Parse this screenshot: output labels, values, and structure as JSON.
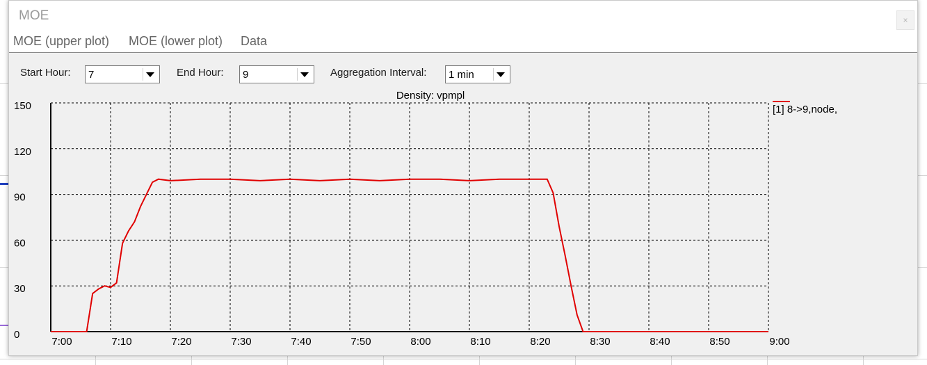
{
  "window": {
    "title": "MOE",
    "close_glyph": "×"
  },
  "menu": {
    "items": [
      {
        "label": "MOE (upper plot)"
      },
      {
        "label": "MOE (lower plot)"
      },
      {
        "label": "Data"
      }
    ]
  },
  "controls": {
    "start_hour_label": "Start Hour:",
    "start_hour_value": "7",
    "end_hour_label": "End Hour:",
    "end_hour_value": "9",
    "aggregation_label": "Aggregation Interval:",
    "aggregation_value": "1 min"
  },
  "chart_data": {
    "type": "line",
    "title": "Density: vpmpl",
    "xlabel": "",
    "ylabel": "",
    "x_tick_labels": [
      "7:00",
      "7:10",
      "7:20",
      "7:30",
      "7:40",
      "7:50",
      "8:00",
      "8:10",
      "8:20",
      "8:30",
      "8:40",
      "8:50",
      "9:00"
    ],
    "y_tick_labels": [
      "0",
      "30",
      "60",
      "90",
      "120",
      "150"
    ],
    "xlim_minutes": [
      0,
      120
    ],
    "ylim": [
      0,
      150
    ],
    "grid": true,
    "legend_position": "top-right",
    "series": [
      {
        "name": "[1] 8->9,node,",
        "color": "#e00000",
        "x": [
          "7:00",
          "7:06",
          "7:07",
          "7:08",
          "7:09",
          "7:10",
          "7:11",
          "7:12",
          "7:13",
          "7:14",
          "7:15",
          "7:16",
          "7:17",
          "7:18",
          "7:20",
          "7:25",
          "7:30",
          "7:35",
          "7:40",
          "7:45",
          "7:50",
          "7:55",
          "8:00",
          "8:05",
          "8:10",
          "8:15",
          "8:20",
          "8:23",
          "8:24",
          "8:25",
          "8:26",
          "8:27",
          "8:28",
          "8:29",
          "8:30",
          "8:40",
          "8:50",
          "9:00"
        ],
        "values": [
          0,
          0,
          25,
          28,
          30,
          29,
          32,
          58,
          66,
          72,
          82,
          90,
          98,
          100,
          99,
          100,
          100,
          99,
          100,
          99,
          100,
          99,
          100,
          100,
          99,
          100,
          100,
          100,
          91,
          69,
          50,
          30,
          11,
          0,
          0,
          0,
          0,
          0
        ]
      }
    ]
  }
}
